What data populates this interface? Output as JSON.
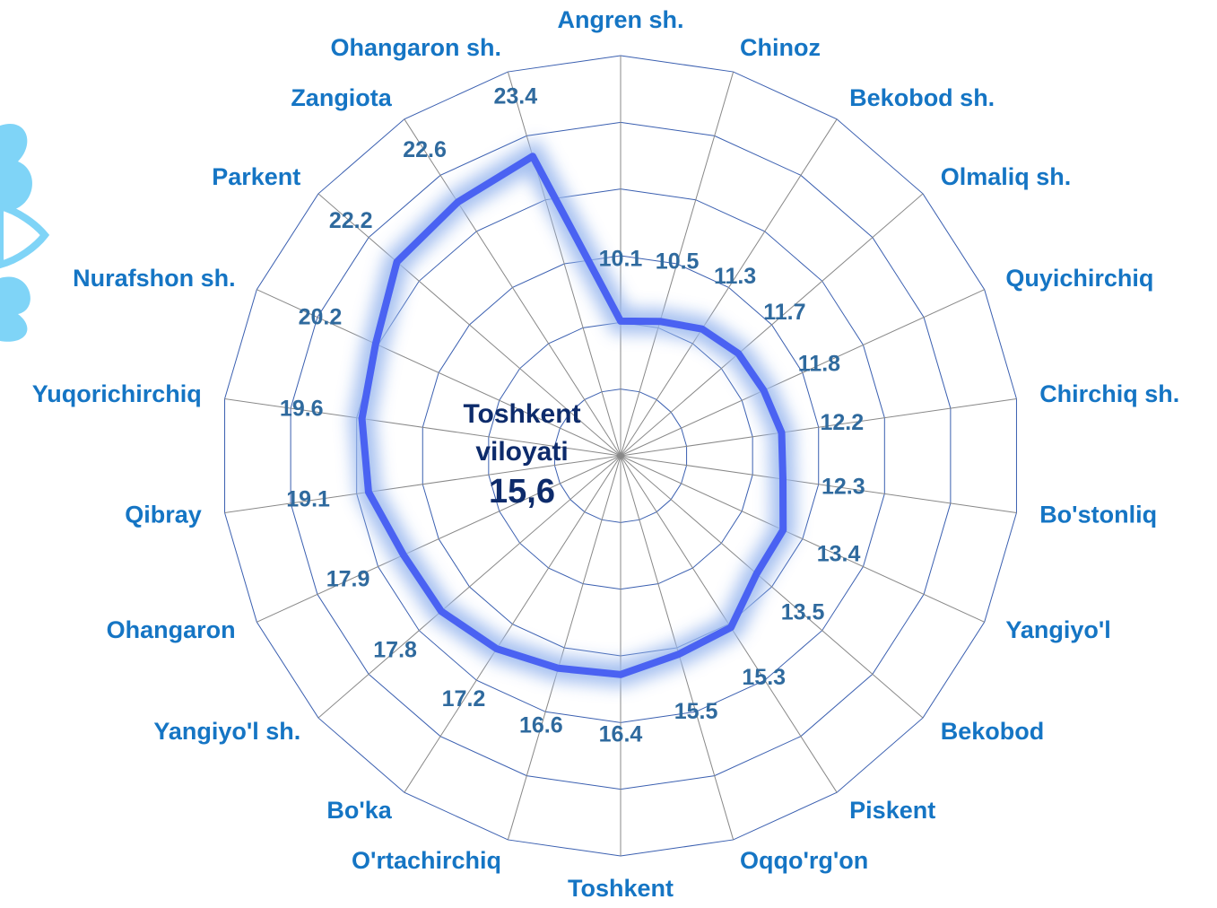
{
  "chart_data": {
    "type": "radar",
    "categories": [
      "Angren sh.",
      "Chinoz",
      "Bekobod sh.",
      "Olmaliq sh.",
      "Quyichirchiq",
      "Chirchiq sh.",
      "Bo'stonliq",
      "Yangiyo'l",
      "Bekobod",
      "Piskent",
      "Oqqo'rg'on",
      "Toshkent",
      "O'rtachirchiq",
      "Bo'ka",
      "Yangiyo'l sh.",
      "Ohangaron",
      "Qibray",
      "Yuqorichirchiq",
      "Nurafshon sh.",
      "Parkent",
      "Zangiota",
      "Ohangaron sh."
    ],
    "values": [
      10.1,
      10.5,
      11.3,
      11.7,
      11.8,
      12.2,
      12.3,
      13.4,
      13.5,
      15.3,
      15.5,
      16.4,
      16.6,
      17.2,
      17.8,
      17.9,
      19.1,
      19.6,
      20.2,
      22.2,
      22.6,
      23.4
    ],
    "color": "#4a62f2",
    "ylim": [
      0,
      30
    ],
    "yticks": [
      0,
      5,
      10,
      15,
      20,
      25,
      30
    ],
    "grid": true,
    "annotations": [
      "Toshkent",
      "viloyati",
      "15,6"
    ]
  }
}
